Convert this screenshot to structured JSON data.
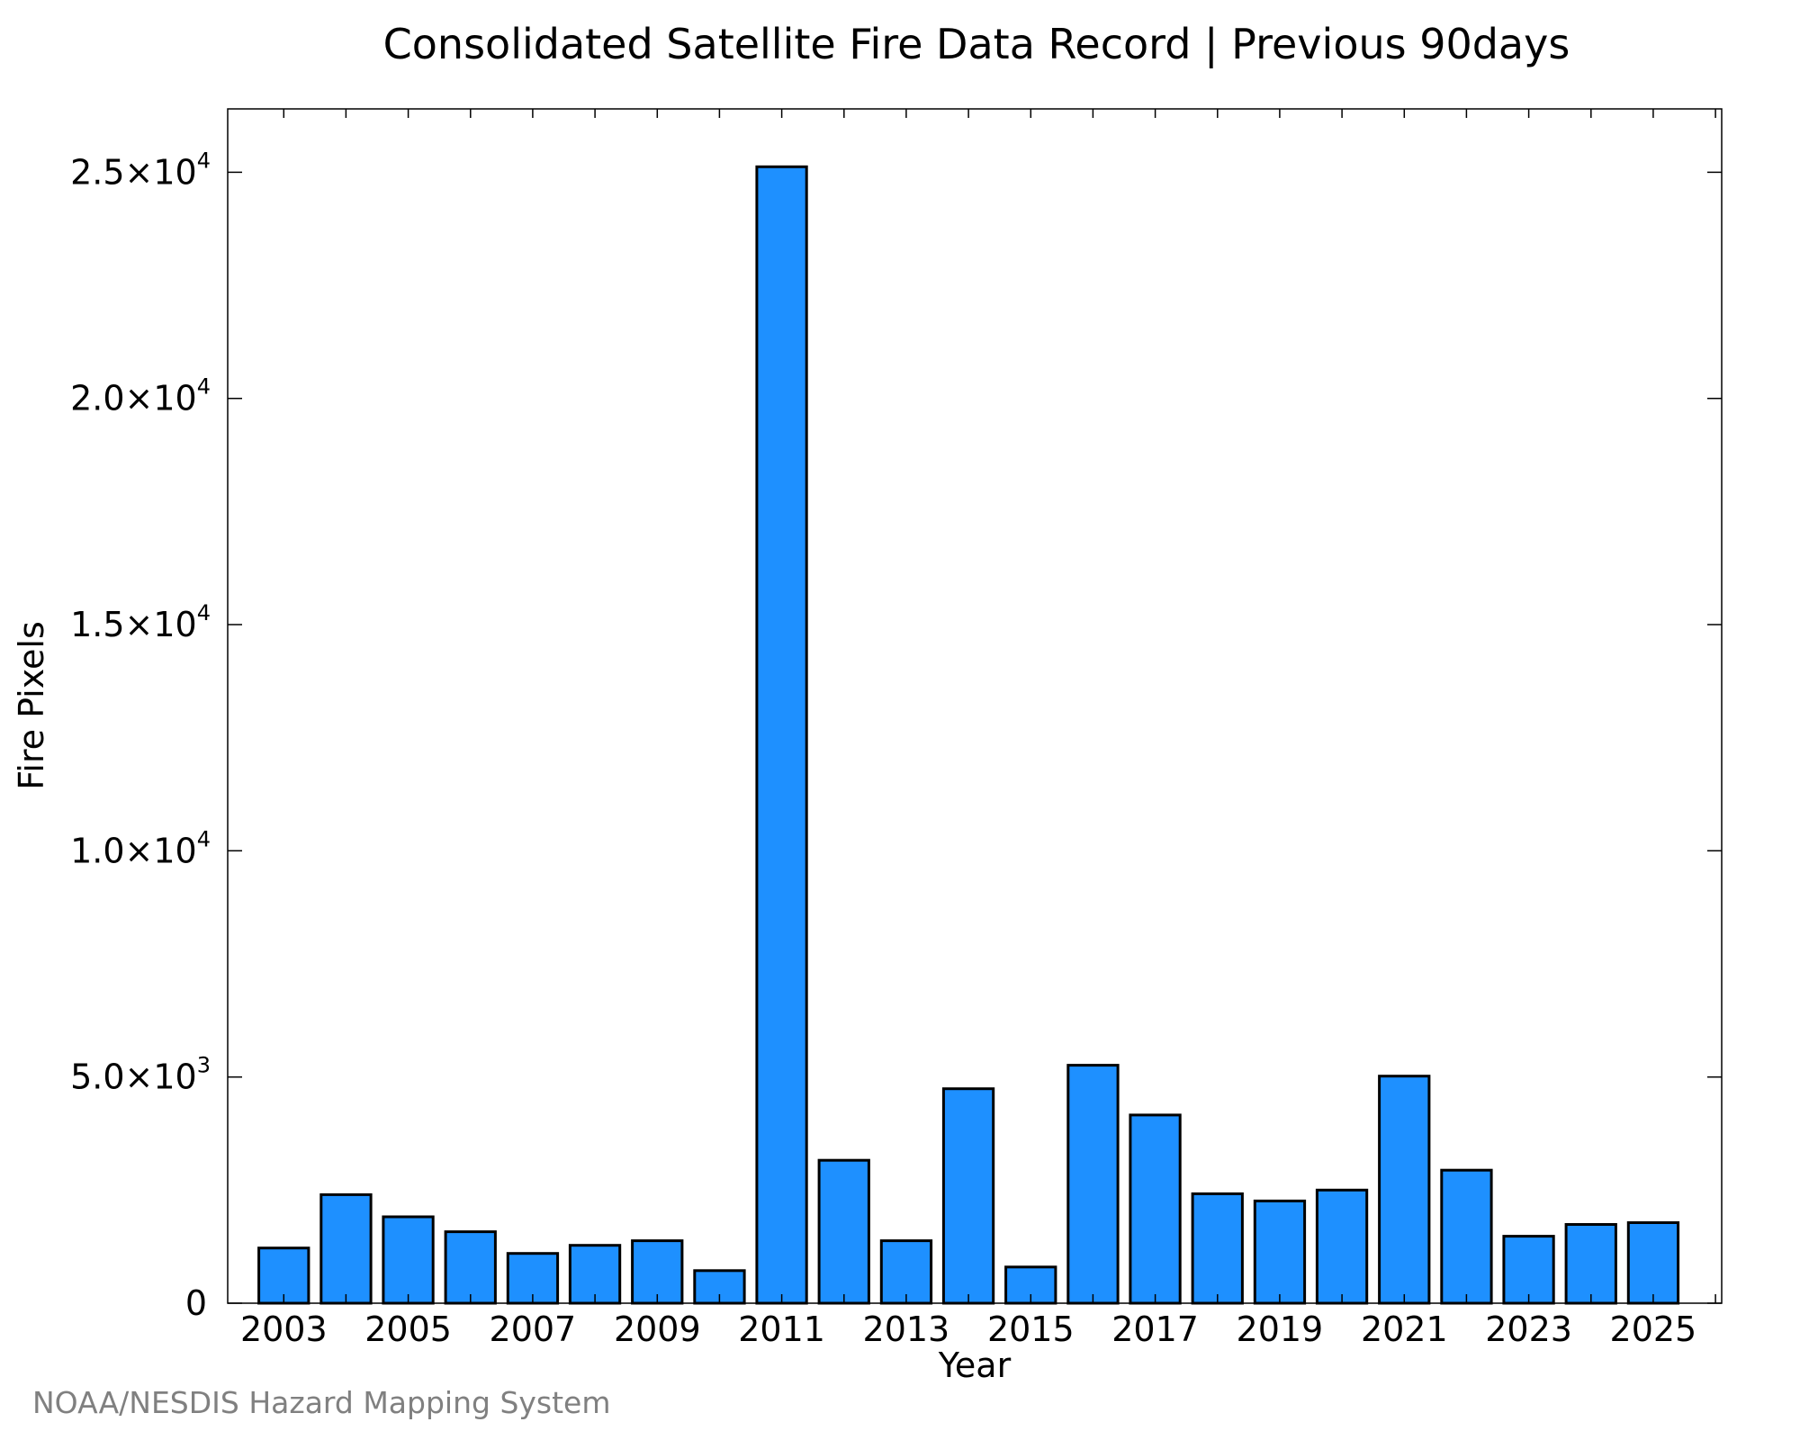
{
  "chart_data": {
    "type": "bar",
    "title": "Consolidated Satellite Fire Data Record | Previous 90days",
    "xlabel": "Year",
    "ylabel": "Fire Pixels",
    "categories": [
      "2003",
      "2004",
      "2005",
      "2006",
      "2007",
      "2008",
      "2009",
      "2010",
      "2011",
      "2012",
      "2013",
      "2014",
      "2015",
      "2016",
      "2017",
      "2018",
      "2019",
      "2020",
      "2021",
      "2022",
      "2023",
      "2024",
      "2025"
    ],
    "values": [
      1220,
      2400,
      1910,
      1580,
      1100,
      1280,
      1380,
      720,
      25120,
      3160,
      1380,
      4740,
      800,
      5260,
      4160,
      2420,
      2260,
      2500,
      5020,
      2940,
      1480,
      1740,
      1780
    ],
    "ylim": [
      0,
      26400
    ],
    "xlim": [
      2002.1,
      2026.1
    ],
    "x_ticks": [
      {
        "value": 2003,
        "label": "2003"
      },
      {
        "value": 2005,
        "label": "2005"
      },
      {
        "value": 2007,
        "label": "2007"
      },
      {
        "value": 2009,
        "label": "2009"
      },
      {
        "value": 2011,
        "label": "2011"
      },
      {
        "value": 2013,
        "label": "2013"
      },
      {
        "value": 2015,
        "label": "2015"
      },
      {
        "value": 2017,
        "label": "2017"
      },
      {
        "value": 2019,
        "label": "2019"
      },
      {
        "value": 2021,
        "label": "2021"
      },
      {
        "value": 2023,
        "label": "2023"
      },
      {
        "value": 2025,
        "label": "2025"
      }
    ],
    "y_ticks": [
      {
        "value": 0,
        "mantissa": "0",
        "exponent": ""
      },
      {
        "value": 5000,
        "mantissa": "5.0×10",
        "exponent": "3"
      },
      {
        "value": 10000,
        "mantissa": "1.0×10",
        "exponent": "4"
      },
      {
        "value": 15000,
        "mantissa": "1.5×10",
        "exponent": "4"
      },
      {
        "value": 20000,
        "mantissa": "2.0×10",
        "exponent": "4"
      },
      {
        "value": 25000,
        "mantissa": "2.5×10",
        "exponent": "4"
      }
    ],
    "grid": false,
    "legend": "none",
    "bar_color": "#1e90ff",
    "bar_edge_color": "#000000"
  },
  "footer": {
    "credit": "NOAA/NESDIS Hazard Mapping System"
  }
}
